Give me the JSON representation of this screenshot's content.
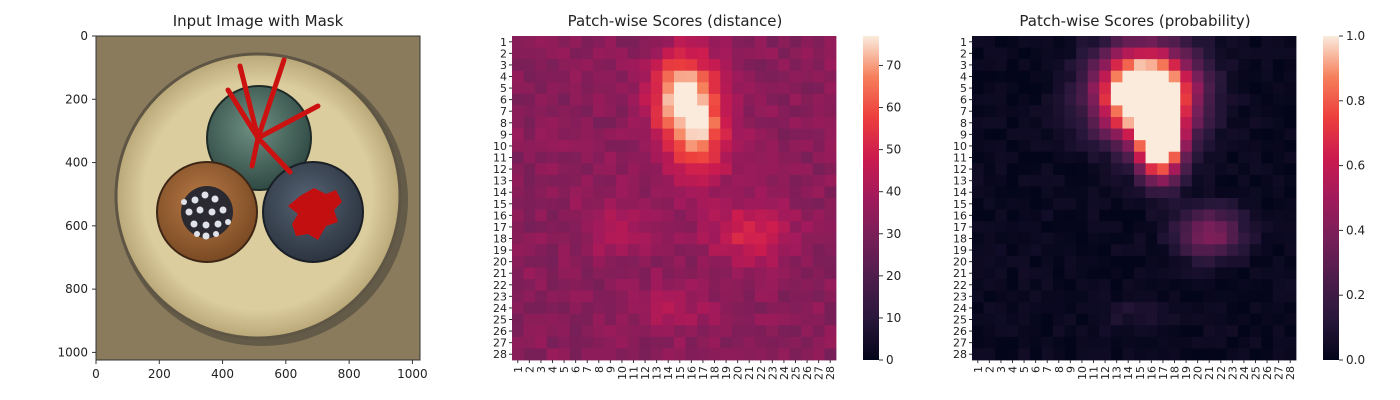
{
  "chart_data": [
    {
      "type": "image",
      "title": "Input Image with Mask",
      "x_ticks": [
        0,
        200,
        400,
        600,
        800,
        1000
      ],
      "y_ticks": [
        0,
        200,
        400,
        600,
        800,
        1000
      ],
      "xlim": [
        0,
        1024
      ],
      "ylim": [
        1024,
        0
      ],
      "content": "cable cross-section with three conductors; red mask over cut strands (top) and damaged insulation (right)",
      "colors": {
        "mask": "#cc1111",
        "background": "#8a7a5c",
        "sheath": "#d8c89a"
      }
    },
    {
      "type": "heatmap",
      "title": "Patch-wise Scores (distance)",
      "x_tick_labels": [
        "1",
        "2",
        "3",
        "4",
        "5",
        "6",
        "7",
        "8",
        "9",
        "10",
        "11",
        "12",
        "13",
        "14",
        "15",
        "16",
        "17",
        "18",
        "19",
        "20",
        "21",
        "22",
        "23",
        "24",
        "25",
        "26",
        "27",
        "28"
      ],
      "y_tick_labels": [
        "1",
        "2",
        "3",
        "4",
        "5",
        "6",
        "7",
        "8",
        "9",
        "10",
        "11",
        "12",
        "13",
        "14",
        "15",
        "16",
        "17",
        "18",
        "19",
        "20",
        "21",
        "22",
        "23",
        "24",
        "25",
        "26",
        "27",
        "28"
      ],
      "colorbar": {
        "min": 0,
        "max": 77,
        "ticks": [
          0,
          10,
          20,
          30,
          40,
          50,
          60,
          70
        ]
      },
      "colormap": "rocket",
      "base_value": 33,
      "blobs": [
        {
          "row": 5.5,
          "col": 15.5,
          "sigma_row": 2.5,
          "sigma_col": 2.0,
          "amplitude": 42
        },
        {
          "row": 9.5,
          "col": 16.5,
          "sigma_row": 2.5,
          "sigma_col": 2.0,
          "amplitude": 28
        },
        {
          "row": 17.5,
          "col": 21.0,
          "sigma_row": 1.8,
          "sigma_col": 2.5,
          "amplitude": 18
        },
        {
          "row": 17.0,
          "col": 9.5,
          "sigma_row": 2.0,
          "sigma_col": 2.0,
          "amplitude": 8
        },
        {
          "row": 24.0,
          "col": 14.5,
          "sigma_row": 1.5,
          "sigma_col": 2.5,
          "amplitude": 8
        }
      ]
    },
    {
      "type": "heatmap",
      "title": "Patch-wise Scores (probability)",
      "x_tick_labels": [
        "1",
        "2",
        "3",
        "4",
        "5",
        "6",
        "7",
        "8",
        "9",
        "10",
        "11",
        "12",
        "13",
        "14",
        "15",
        "16",
        "17",
        "18",
        "19",
        "20",
        "21",
        "22",
        "23",
        "24",
        "25",
        "26",
        "27",
        "28"
      ],
      "y_tick_labels": [
        "1",
        "2",
        "3",
        "4",
        "5",
        "6",
        "7",
        "8",
        "9",
        "10",
        "11",
        "12",
        "13",
        "14",
        "15",
        "16",
        "17",
        "18",
        "19",
        "20",
        "21",
        "22",
        "23",
        "24",
        "25",
        "26",
        "27",
        "28"
      ],
      "colorbar": {
        "min": 0.0,
        "max": 1.0,
        "ticks": [
          "0.0",
          "0.2",
          "0.4",
          "0.6",
          "0.8",
          "1.0"
        ]
      },
      "colormap": "rocket",
      "base_value": 0.02,
      "blobs": [
        {
          "row": 5.5,
          "col": 15.5,
          "sigma_row": 2.6,
          "sigma_col": 2.8,
          "amplitude": 1.5
        },
        {
          "row": 10.0,
          "col": 16.8,
          "sigma_row": 2.0,
          "sigma_col": 1.3,
          "amplitude": 1.2
        },
        {
          "row": 17.5,
          "col": 21.0,
          "sigma_row": 1.5,
          "sigma_col": 2.0,
          "amplitude": 0.4
        },
        {
          "row": 24.5,
          "col": 14.5,
          "sigma_row": 1.0,
          "sigma_col": 2.0,
          "amplitude": 0.07
        }
      ]
    }
  ]
}
